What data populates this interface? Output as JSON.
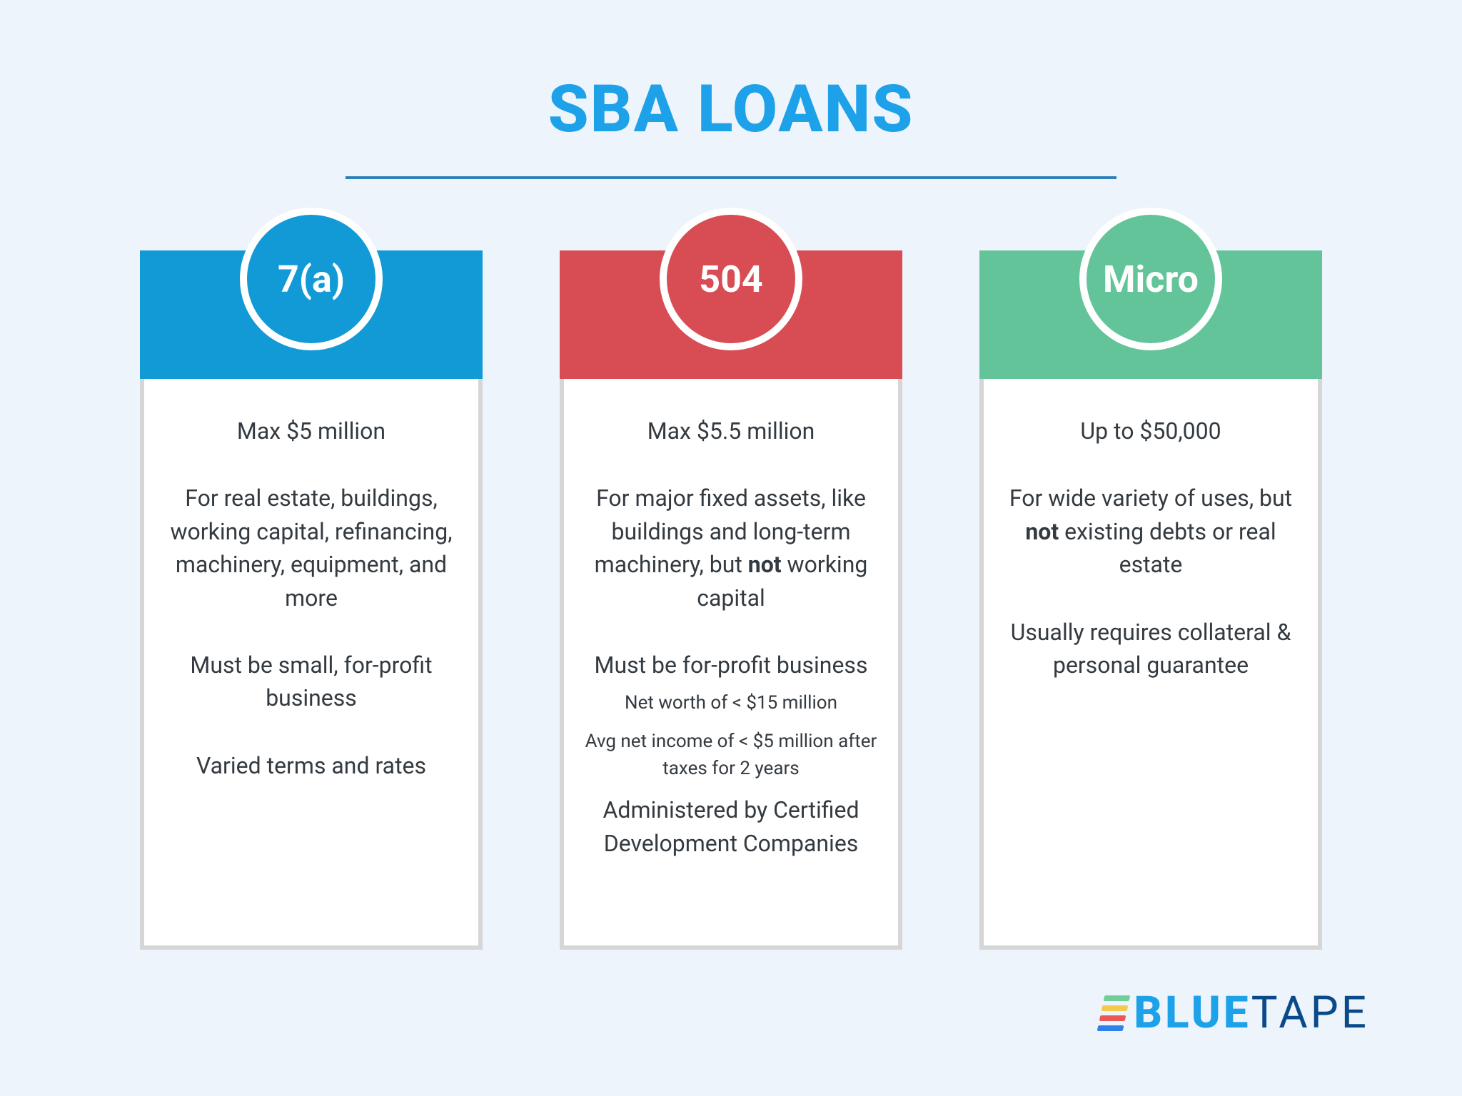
{
  "colors": {
    "page_bg": "#eef4fb",
    "title": "#1da1e8",
    "underline": "#2f7fb8",
    "card_border": "#d6d6d6",
    "body_text": "#333a40",
    "logo_blue_dark": "#0a4a8a",
    "logo_blue": "#1da1e8",
    "logo_stripe1": "#6fcf97",
    "logo_stripe2": "#f2c94c",
    "logo_stripe3": "#eb5757",
    "logo_stripe4": "#2f80ed"
  },
  "title": "SBA LOANS",
  "columns": [
    {
      "badge": "7(a)",
      "header_color": "#119ad6",
      "badge_color": "#119ad6",
      "lines": [
        {
          "text": "Max $5 million"
        },
        {
          "text": "For real estate, buildings, working capital, refinancing, machinery, equipment, and more"
        },
        {
          "text": "Must be small, for-profit business"
        },
        {
          "text": "Varied terms and rates"
        }
      ]
    },
    {
      "badge": "504",
      "header_color": "#d84c54",
      "badge_color": "#d84c54",
      "lines": [
        {
          "text": "Max $5.5 million"
        },
        {
          "html": "For major fixed assets, like buildings and long-term machinery, but <b>not</b> working capital"
        },
        {
          "text": "Must be for-profit business"
        },
        {
          "text": "Net worth of < $15 million",
          "small": true
        },
        {
          "text": "Avg net income of < $5 million after taxes for 2 years",
          "small": true
        },
        {
          "text": "Administered by Certified Development Companies"
        }
      ]
    },
    {
      "badge": "Micro",
      "header_color": "#63c49a",
      "badge_color": "#63c49a",
      "lines": [
        {
          "text": "Up to $50,000"
        },
        {
          "html": "For wide variety of uses, but <b>not</b> existing debts or real estate"
        },
        {
          "text": "Usually requires collateral & personal guarantee"
        }
      ]
    }
  ],
  "logo": {
    "part1": "BLUE",
    "part2": "TAPE"
  }
}
